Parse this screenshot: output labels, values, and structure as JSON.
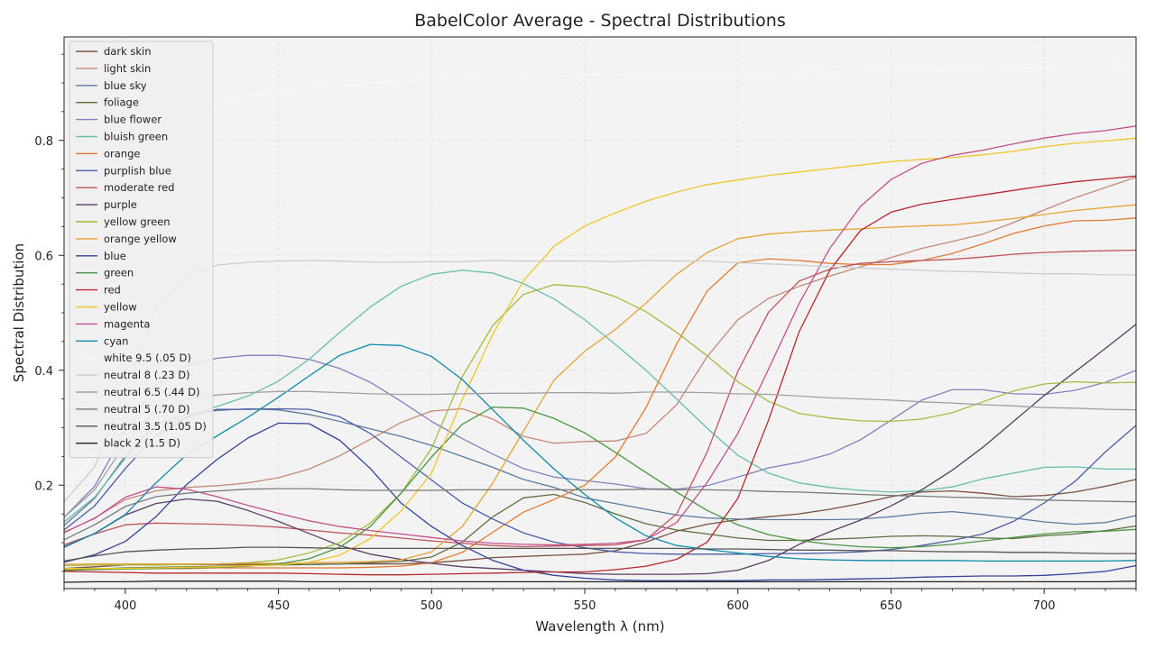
{
  "chart_data": {
    "type": "line",
    "title": "BabelColor Average - Spectral Distributions",
    "xlabel": "Wavelength λ (nm)",
    "ylabel": "Spectral Distribution",
    "xlim": [
      380,
      730
    ],
    "ylim": [
      0.02,
      0.98
    ],
    "xticks": [
      400,
      450,
      500,
      550,
      600,
      650,
      700
    ],
    "yticks": [
      0.2,
      0.4,
      0.6,
      0.8
    ],
    "grid": true,
    "legend_position": "top-left",
    "x": [
      380,
      390,
      400,
      410,
      420,
      430,
      440,
      450,
      460,
      470,
      480,
      490,
      500,
      510,
      520,
      530,
      540,
      550,
      560,
      570,
      580,
      590,
      600,
      610,
      620,
      630,
      640,
      650,
      660,
      670,
      680,
      690,
      700,
      710,
      720,
      730
    ],
    "series": [
      {
        "name": "dark skin",
        "color": "#7d4f3f",
        "values": [
          0.055,
          0.058,
          0.061,
          0.062,
          0.062,
          0.062,
          0.062,
          0.062,
          0.062,
          0.063,
          0.063,
          0.063,
          0.065,
          0.069,
          0.074,
          0.076,
          0.078,
          0.08,
          0.086,
          0.101,
          0.12,
          0.132,
          0.14,
          0.145,
          0.15,
          0.158,
          0.168,
          0.18,
          0.188,
          0.19,
          0.186,
          0.18,
          0.182,
          0.188,
          0.198,
          0.21
        ]
      },
      {
        "name": "light skin",
        "color": "#c48a76",
        "values": [
          0.117,
          0.143,
          0.175,
          0.19,
          0.196,
          0.199,
          0.204,
          0.213,
          0.228,
          0.251,
          0.28,
          0.309,
          0.329,
          0.333,
          0.315,
          0.285,
          0.273,
          0.276,
          0.277,
          0.29,
          0.34,
          0.424,
          0.488,
          0.525,
          0.546,
          0.564,
          0.58,
          0.596,
          0.612,
          0.624,
          0.637,
          0.657,
          0.679,
          0.7,
          0.718,
          0.736
        ]
      },
      {
        "name": "blue sky",
        "color": "#5b7ba0",
        "values": [
          0.13,
          0.177,
          0.251,
          0.306,
          0.324,
          0.33,
          0.333,
          0.331,
          0.323,
          0.311,
          0.298,
          0.285,
          0.269,
          0.25,
          0.231,
          0.21,
          0.196,
          0.178,
          0.168,
          0.158,
          0.148,
          0.143,
          0.141,
          0.14,
          0.14,
          0.14,
          0.141,
          0.145,
          0.151,
          0.154,
          0.149,
          0.143,
          0.136,
          0.132,
          0.135,
          0.147
        ]
      },
      {
        "name": "foliage",
        "color": "#5e6d3e",
        "values": [
          0.051,
          0.054,
          0.056,
          0.057,
          0.058,
          0.059,
          0.06,
          0.061,
          0.062,
          0.063,
          0.065,
          0.067,
          0.075,
          0.101,
          0.145,
          0.178,
          0.184,
          0.17,
          0.15,
          0.133,
          0.122,
          0.115,
          0.108,
          0.104,
          0.104,
          0.106,
          0.108,
          0.111,
          0.112,
          0.111,
          0.108,
          0.107,
          0.112,
          0.115,
          0.121,
          0.129
        ]
      },
      {
        "name": "blue flower",
        "color": "#8181be",
        "values": [
          0.144,
          0.198,
          0.294,
          0.375,
          0.408,
          0.421,
          0.426,
          0.426,
          0.419,
          0.403,
          0.379,
          0.346,
          0.311,
          0.281,
          0.254,
          0.229,
          0.214,
          0.208,
          0.202,
          0.194,
          0.193,
          0.199,
          0.214,
          0.23,
          0.24,
          0.254,
          0.279,
          0.313,
          0.348,
          0.366,
          0.366,
          0.359,
          0.358,
          0.365,
          0.379,
          0.4
        ]
      },
      {
        "name": "bluish green",
        "color": "#67bdaa",
        "values": [
          0.136,
          0.179,
          0.247,
          0.297,
          0.32,
          0.337,
          0.355,
          0.381,
          0.419,
          0.466,
          0.51,
          0.546,
          0.567,
          0.574,
          0.569,
          0.551,
          0.524,
          0.488,
          0.445,
          0.4,
          0.35,
          0.299,
          0.252,
          0.221,
          0.204,
          0.196,
          0.191,
          0.188,
          0.19,
          0.197,
          0.211,
          0.221,
          0.231,
          0.232,
          0.228,
          0.228
        ]
      },
      {
        "name": "orange",
        "color": "#e07b33",
        "values": [
          0.054,
          0.055,
          0.055,
          0.055,
          0.055,
          0.056,
          0.056,
          0.056,
          0.056,
          0.056,
          0.057,
          0.059,
          0.065,
          0.083,
          0.118,
          0.153,
          0.175,
          0.2,
          0.249,
          0.335,
          0.446,
          0.538,
          0.587,
          0.594,
          0.591,
          0.586,
          0.584,
          0.584,
          0.591,
          0.603,
          0.62,
          0.638,
          0.651,
          0.66,
          0.661,
          0.665
        ]
      },
      {
        "name": "purplish blue",
        "color": "#4a5ea6",
        "values": [
          0.122,
          0.164,
          0.229,
          0.286,
          0.318,
          0.332,
          0.332,
          0.333,
          0.332,
          0.319,
          0.29,
          0.249,
          0.209,
          0.169,
          0.141,
          0.117,
          0.101,
          0.091,
          0.084,
          0.081,
          0.08,
          0.08,
          0.08,
          0.081,
          0.081,
          0.082,
          0.084,
          0.088,
          0.095,
          0.104,
          0.115,
          0.137,
          0.169,
          0.206,
          0.258,
          0.304
        ]
      },
      {
        "name": "moderate red",
        "color": "#c1545c",
        "values": [
          0.096,
          0.115,
          0.131,
          0.134,
          0.133,
          0.132,
          0.13,
          0.127,
          0.122,
          0.117,
          0.113,
          0.108,
          0.103,
          0.099,
          0.095,
          0.093,
          0.094,
          0.095,
          0.096,
          0.105,
          0.15,
          0.258,
          0.398,
          0.501,
          0.555,
          0.576,
          0.586,
          0.589,
          0.591,
          0.593,
          0.597,
          0.602,
          0.605,
          0.607,
          0.608,
          0.609
        ]
      },
      {
        "name": "purple",
        "color": "#5a3d66",
        "values": [
          0.092,
          0.116,
          0.148,
          0.168,
          0.176,
          0.172,
          0.156,
          0.137,
          0.116,
          0.095,
          0.08,
          0.071,
          0.064,
          0.058,
          0.055,
          0.052,
          0.049,
          0.046,
          0.045,
          0.045,
          0.045,
          0.046,
          0.052,
          0.069,
          0.097,
          0.119,
          0.139,
          0.164,
          0.192,
          0.226,
          0.266,
          0.311,
          0.356,
          0.397,
          0.438,
          0.48
        ]
      },
      {
        "name": "yellow green",
        "color": "#a6bb3f",
        "values": [
          0.06,
          0.061,
          0.061,
          0.061,
          0.062,
          0.063,
          0.065,
          0.07,
          0.082,
          0.1,
          0.134,
          0.186,
          0.264,
          0.389,
          0.478,
          0.532,
          0.549,
          0.545,
          0.528,
          0.502,
          0.466,
          0.425,
          0.38,
          0.346,
          0.325,
          0.317,
          0.312,
          0.311,
          0.315,
          0.326,
          0.345,
          0.364,
          0.376,
          0.38,
          0.378,
          0.379
        ]
      },
      {
        "name": "orange yellow",
        "color": "#e5a335",
        "values": [
          0.062,
          0.063,
          0.063,
          0.063,
          0.063,
          0.063,
          0.064,
          0.064,
          0.065,
          0.066,
          0.067,
          0.07,
          0.084,
          0.128,
          0.204,
          0.294,
          0.383,
          0.433,
          0.471,
          0.517,
          0.567,
          0.605,
          0.629,
          0.637,
          0.641,
          0.644,
          0.646,
          0.649,
          0.651,
          0.653,
          0.658,
          0.664,
          0.671,
          0.678,
          0.683,
          0.688
        ]
      },
      {
        "name": "blue",
        "color": "#31439a",
        "values": [
          0.066,
          0.079,
          0.102,
          0.145,
          0.201,
          0.245,
          0.282,
          0.308,
          0.307,
          0.278,
          0.229,
          0.169,
          0.128,
          0.095,
          0.069,
          0.052,
          0.043,
          0.038,
          0.035,
          0.034,
          0.034,
          0.034,
          0.034,
          0.035,
          0.035,
          0.036,
          0.037,
          0.038,
          0.04,
          0.041,
          0.042,
          0.042,
          0.043,
          0.046,
          0.05,
          0.06
        ]
      },
      {
        "name": "green",
        "color": "#4b9642",
        "values": [
          0.052,
          0.053,
          0.054,
          0.055,
          0.056,
          0.057,
          0.059,
          0.063,
          0.072,
          0.092,
          0.128,
          0.186,
          0.249,
          0.306,
          0.336,
          0.334,
          0.316,
          0.291,
          0.257,
          0.222,
          0.188,
          0.156,
          0.131,
          0.114,
          0.104,
          0.097,
          0.093,
          0.091,
          0.093,
          0.097,
          0.103,
          0.109,
          0.115,
          0.119,
          0.12,
          0.123
        ]
      },
      {
        "name": "red",
        "color": "#b8282d",
        "values": [
          0.05,
          0.049,
          0.048,
          0.047,
          0.047,
          0.047,
          0.047,
          0.047,
          0.046,
          0.045,
          0.044,
          0.044,
          0.045,
          0.046,
          0.047,
          0.048,
          0.049,
          0.049,
          0.053,
          0.059,
          0.071,
          0.101,
          0.177,
          0.313,
          0.467,
          0.574,
          0.643,
          0.675,
          0.689,
          0.697,
          0.705,
          0.713,
          0.721,
          0.728,
          0.733,
          0.738
        ]
      },
      {
        "name": "yellow",
        "color": "#f0c62a",
        "values": [
          0.055,
          0.055,
          0.055,
          0.056,
          0.057,
          0.058,
          0.06,
          0.061,
          0.066,
          0.078,
          0.107,
          0.155,
          0.221,
          0.349,
          0.463,
          0.556,
          0.616,
          0.651,
          0.674,
          0.694,
          0.71,
          0.723,
          0.731,
          0.739,
          0.745,
          0.751,
          0.757,
          0.763,
          0.767,
          0.77,
          0.775,
          0.781,
          0.789,
          0.795,
          0.799,
          0.804
        ]
      },
      {
        "name": "magenta",
        "color": "#c2508e",
        "values": [
          0.118,
          0.142,
          0.179,
          0.197,
          0.193,
          0.18,
          0.165,
          0.151,
          0.138,
          0.128,
          0.121,
          0.115,
          0.109,
          0.103,
          0.099,
          0.097,
          0.096,
          0.097,
          0.099,
          0.105,
          0.135,
          0.205,
          0.29,
          0.402,
          0.516,
          0.612,
          0.685,
          0.732,
          0.76,
          0.774,
          0.783,
          0.794,
          0.804,
          0.812,
          0.817,
          0.825
        ]
      },
      {
        "name": "cyan",
        "color": "#0d8aa7",
        "values": [
          0.093,
          0.116,
          0.149,
          0.204,
          0.253,
          0.286,
          0.318,
          0.353,
          0.39,
          0.426,
          0.445,
          0.443,
          0.424,
          0.384,
          0.331,
          0.278,
          0.228,
          0.184,
          0.143,
          0.112,
          0.095,
          0.088,
          0.082,
          0.076,
          0.072,
          0.07,
          0.069,
          0.069,
          0.069,
          0.069,
          0.068,
          0.068,
          0.068,
          0.068,
          0.068,
          0.069
        ]
      },
      {
        "name": "white 9.5 (.05 D)",
        "color": "#f8f8f8",
        "values": [
          0.189,
          0.255,
          0.423,
          0.66,
          0.811,
          0.862,
          0.877,
          0.884,
          0.891,
          0.896,
          0.899,
          0.904,
          0.907,
          0.909,
          0.911,
          0.91,
          0.911,
          0.914,
          0.913,
          0.916,
          0.915,
          0.916,
          0.914,
          0.915,
          0.918,
          0.919,
          0.921,
          0.923,
          0.924,
          0.922,
          0.922,
          0.925,
          0.927,
          0.93,
          0.93,
          0.933
        ]
      },
      {
        "name": "neutral 8 (.23 D)",
        "color": "#cccccc",
        "values": [
          0.171,
          0.232,
          0.365,
          0.507,
          0.567,
          0.583,
          0.588,
          0.59,
          0.591,
          0.59,
          0.588,
          0.588,
          0.589,
          0.589,
          0.591,
          0.59,
          0.59,
          0.59,
          0.589,
          0.591,
          0.59,
          0.59,
          0.587,
          0.585,
          0.583,
          0.58,
          0.578,
          0.576,
          0.574,
          0.572,
          0.571,
          0.569,
          0.568,
          0.568,
          0.566,
          0.566
        ]
      },
      {
        "name": "neutral 6.5 (.44 D)",
        "color": "#a0a0a0",
        "values": [
          0.144,
          0.192,
          0.272,
          0.331,
          0.35,
          0.357,
          0.361,
          0.363,
          0.363,
          0.361,
          0.359,
          0.358,
          0.358,
          0.359,
          0.36,
          0.36,
          0.361,
          0.361,
          0.36,
          0.362,
          0.362,
          0.361,
          0.359,
          0.358,
          0.355,
          0.352,
          0.35,
          0.348,
          0.345,
          0.343,
          0.34,
          0.338,
          0.335,
          0.334,
          0.332,
          0.331
        ]
      },
      {
        "name": "neutral 5 (.70 D)",
        "color": "#7a7a7a",
        "values": [
          0.105,
          0.131,
          0.163,
          0.18,
          0.186,
          0.19,
          0.193,
          0.194,
          0.194,
          0.192,
          0.191,
          0.191,
          0.191,
          0.192,
          0.192,
          0.192,
          0.192,
          0.192,
          0.192,
          0.193,
          0.192,
          0.192,
          0.191,
          0.189,
          0.188,
          0.186,
          0.184,
          0.182,
          0.181,
          0.179,
          0.178,
          0.176,
          0.174,
          0.173,
          0.172,
          0.171
        ]
      },
      {
        "name": "neutral 3.5 (1.05 D)",
        "color": "#555555",
        "values": [
          0.068,
          0.077,
          0.084,
          0.087,
          0.089,
          0.09,
          0.092,
          0.092,
          0.091,
          0.09,
          0.09,
          0.09,
          0.09,
          0.09,
          0.09,
          0.09,
          0.09,
          0.09,
          0.09,
          0.09,
          0.09,
          0.089,
          0.089,
          0.088,
          0.087,
          0.087,
          0.086,
          0.086,
          0.085,
          0.084,
          0.084,
          0.083,
          0.083,
          0.082,
          0.081,
          0.081
        ]
      },
      {
        "name": "black 2 (1.5 D)",
        "color": "#222222",
        "values": [
          0.031,
          0.032,
          0.032,
          0.033,
          0.033,
          0.033,
          0.033,
          0.033,
          0.032,
          0.032,
          0.032,
          0.032,
          0.032,
          0.032,
          0.032,
          0.032,
          0.032,
          0.032,
          0.032,
          0.032,
          0.032,
          0.032,
          0.032,
          0.032,
          0.032,
          0.032,
          0.032,
          0.032,
          0.032,
          0.032,
          0.032,
          0.032,
          0.032,
          0.032,
          0.032,
          0.033
        ]
      }
    ]
  }
}
